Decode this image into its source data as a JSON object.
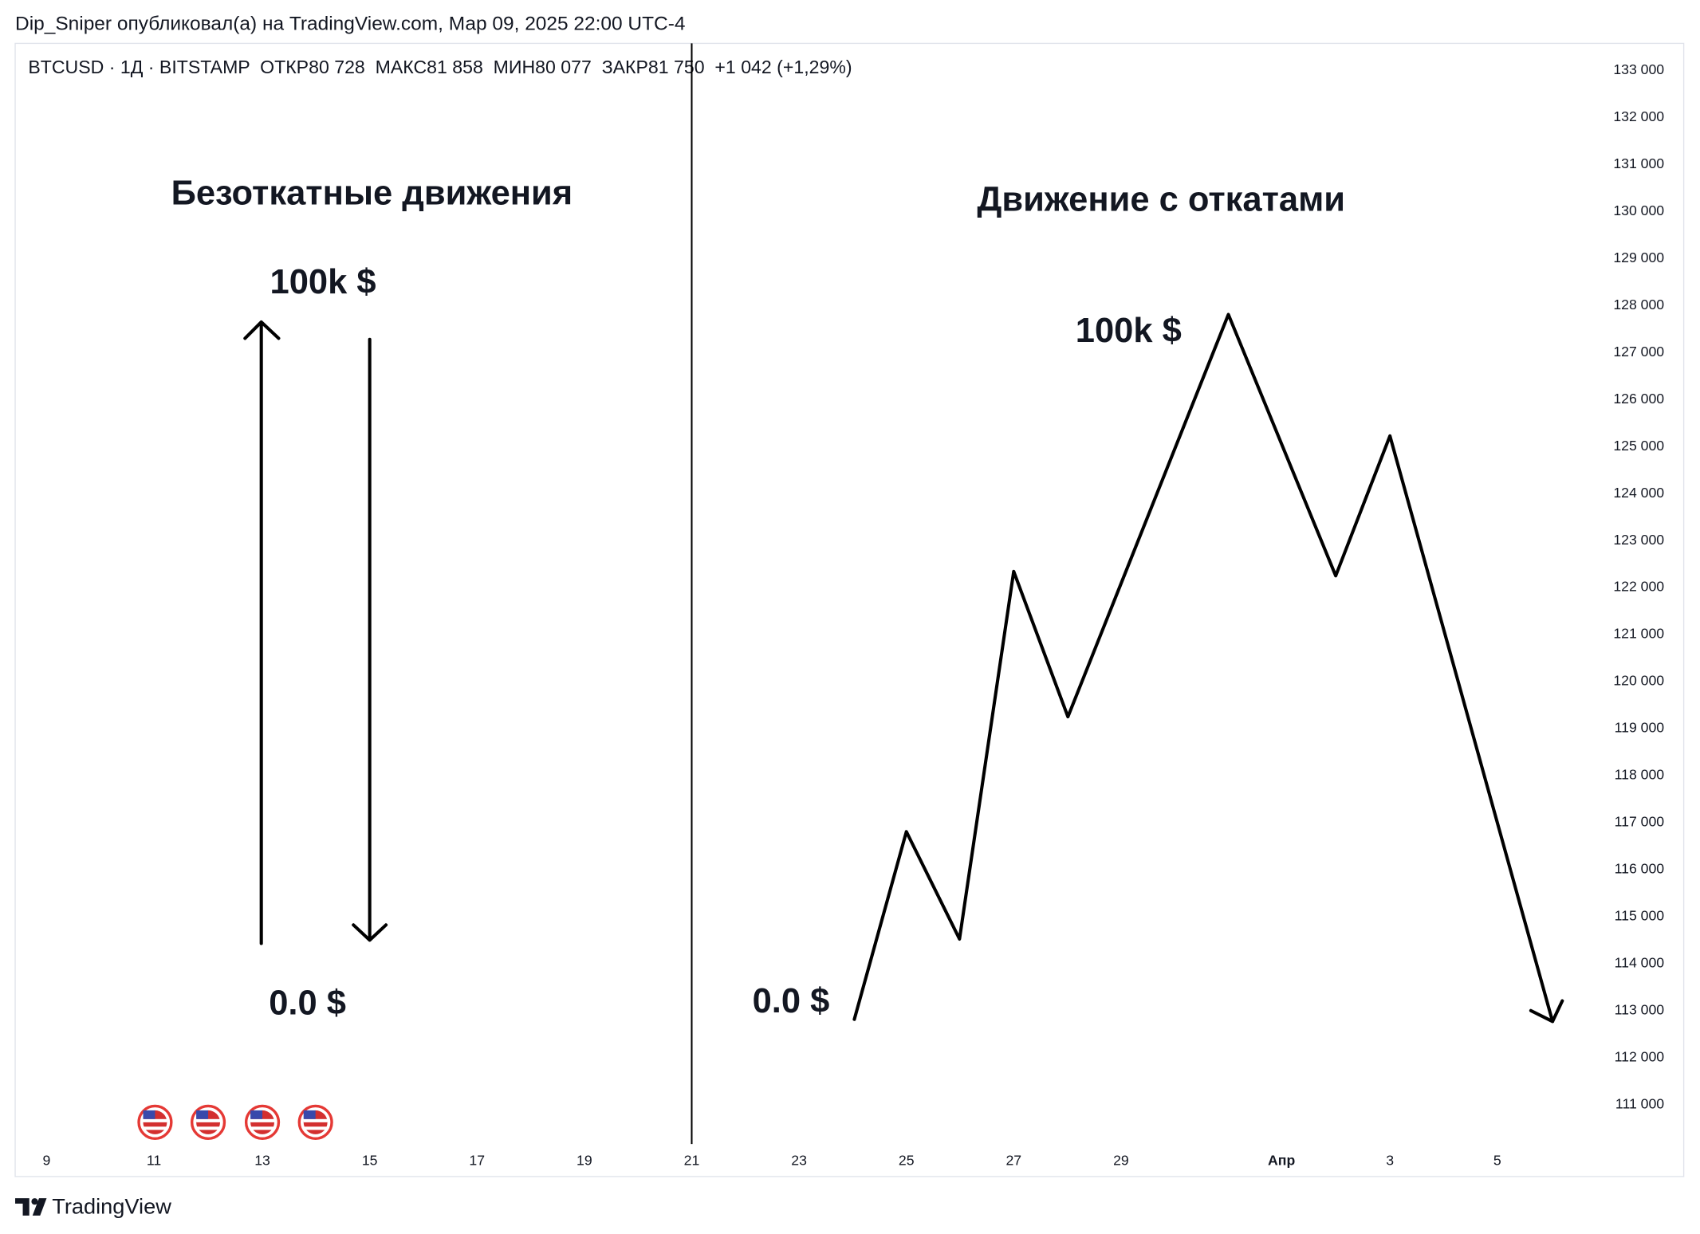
{
  "header": {
    "text": "Dip_Sniper опубликовал(а) на TradingView.com, Мар 09, 2025 22:00 UTC-4"
  },
  "symbol_bar": {
    "text": "BTCUSD · 1Д · BITSTAMP  ОТКР80 728  МАКС81 858  МИН80 077  ЗАКР81 750  +1 042 (+1,29%)"
  },
  "annotations": {
    "left_title": "Безоткатные движения",
    "left_top": "100k $",
    "left_bottom": "0.0 $",
    "right_title": "Движение с откатами",
    "right_top": "100k $",
    "right_bottom": "0.0 $"
  },
  "price_axis": [
    "133 000",
    "132 000",
    "131 000",
    "130 000",
    "129 000",
    "128 000",
    "127 000",
    "126 000",
    "125 000",
    "124 000",
    "123 000",
    "122 000",
    "121 000",
    "120 000",
    "119 000",
    "118 000",
    "117 000",
    "116 000",
    "115 000",
    "114 000",
    "113 000",
    "112 000",
    "111 000"
  ],
  "time_axis": [
    "9",
    "11",
    "13",
    "15",
    "17",
    "19",
    "21",
    "23",
    "25",
    "27",
    "29",
    "Апр",
    "3",
    "5"
  ],
  "footer": {
    "brand": "TradingView"
  }
}
